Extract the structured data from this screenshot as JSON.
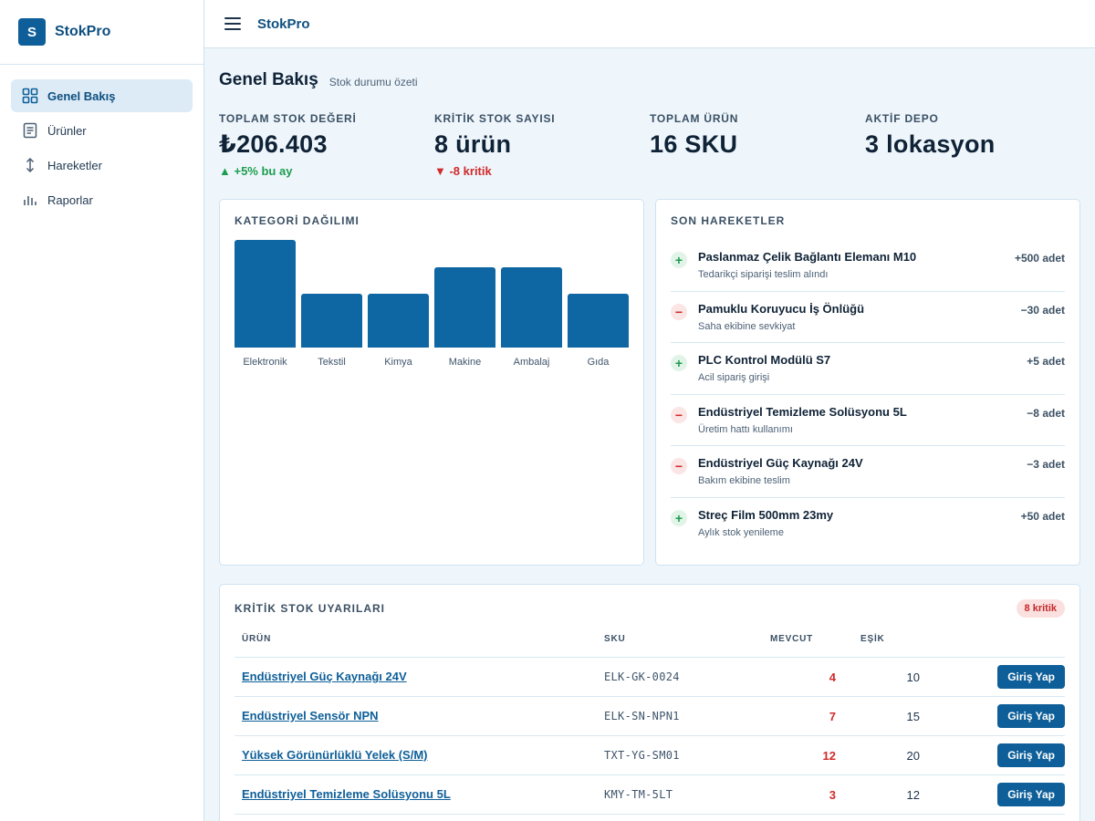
{
  "brand": {
    "logo_letter": "S",
    "name": "StokPro"
  },
  "sidebar": {
    "items": [
      {
        "label": "Genel Bakış",
        "icon": "grid-icon",
        "active": true
      },
      {
        "label": "Ürünler",
        "icon": "document-icon",
        "active": false
      },
      {
        "label": "Hareketler",
        "icon": "up-down-arrow-icon",
        "active": false
      },
      {
        "label": "Raporlar",
        "icon": "bar-chart-icon",
        "active": false
      }
    ]
  },
  "topbar": {
    "title": "StokPro"
  },
  "page": {
    "title": "Genel Bakış",
    "subtitle": "Stok durumu özeti"
  },
  "stats": [
    {
      "label": "TOPLAM STOK DEĞERİ",
      "value": "₺206.403",
      "delta": "▲ +5% bu ay",
      "trend": "up"
    },
    {
      "label": "KRİTİK STOK SAYISI",
      "value": "8 ürün",
      "delta": "▼ -8 kritik",
      "trend": "down"
    },
    {
      "label": "TOPLAM ÜRÜN",
      "value": "16 SKU",
      "delta": "",
      "trend": ""
    },
    {
      "label": "AKTİF DEPO",
      "value": "3 lokasyon",
      "delta": "",
      "trend": ""
    }
  ],
  "chart_card": {
    "title": "KATEGORİ DAĞILIMI"
  },
  "chart_data": {
    "type": "bar",
    "categories": [
      "Elektronik",
      "Tekstil",
      "Kimya",
      "Makine",
      "Ambalaj",
      "Gıda"
    ],
    "values": [
      4,
      2,
      2,
      3,
      3,
      2
    ],
    "ylim": [
      0,
      4
    ],
    "bar_color": "#0e66a3",
    "grid": false
  },
  "movements": {
    "title": "SON HAREKETLER",
    "items": [
      {
        "type": "in",
        "sign": "+",
        "name": "Paslanmaz Çelik Bağlantı Elemanı M10",
        "note": "Tedarikçi siparişi teslim alındı",
        "qty": "+500 adet"
      },
      {
        "type": "out",
        "sign": "−",
        "name": "Pamuklu Koruyucu İş Önlüğü",
        "note": "Saha ekibine sevkiyat",
        "qty": "−30 adet"
      },
      {
        "type": "in",
        "sign": "+",
        "name": "PLC Kontrol Modülü S7",
        "note": "Acil sipariş girişi",
        "qty": "+5 adet"
      },
      {
        "type": "out",
        "sign": "−",
        "name": "Endüstriyel Temizleme Solüsyonu 5L",
        "note": "Üretim hattı kullanımı",
        "qty": "−8 adet"
      },
      {
        "type": "out",
        "sign": "−",
        "name": "Endüstriyel Güç Kaynağı 24V",
        "note": "Bakım ekibine teslim",
        "qty": "−3 adet"
      },
      {
        "type": "in",
        "sign": "+",
        "name": "Streç Film 500mm 23my",
        "note": "Aylık stok yenileme",
        "qty": "+50 adet"
      }
    ]
  },
  "critical": {
    "title": "KRİTİK STOK UYARILARI",
    "badge": "8 kritik",
    "columns": {
      "name": "ÜRÜN",
      "sku": "SKU",
      "current": "MEVCUT",
      "threshold": "EŞİK"
    },
    "rows": [
      {
        "name": "Endüstriyel Güç Kaynağı 24V",
        "sku": "ELK-GK-0024",
        "current": "4",
        "threshold": "10",
        "action": "Giriş Yap"
      },
      {
        "name": "Endüstriyel Sensör NPN",
        "sku": "ELK-SN-NPN1",
        "current": "7",
        "threshold": "15",
        "action": "Giriş Yap"
      },
      {
        "name": "Yüksek Görünürlüklü Yelek (S/M)",
        "sku": "TXT-YG-SM01",
        "current": "12",
        "threshold": "20",
        "action": "Giriş Yap"
      },
      {
        "name": "Endüstriyel Temizleme Solüsyonu 5L",
        "sku": "KMY-TM-5LT",
        "current": "3",
        "threshold": "12",
        "action": "Giriş Yap"
      }
    ]
  },
  "colors": {
    "accent": "#0e5f99",
    "up": "#1e9d4e",
    "down": "#d12a2a",
    "background": "#eef6fc"
  }
}
